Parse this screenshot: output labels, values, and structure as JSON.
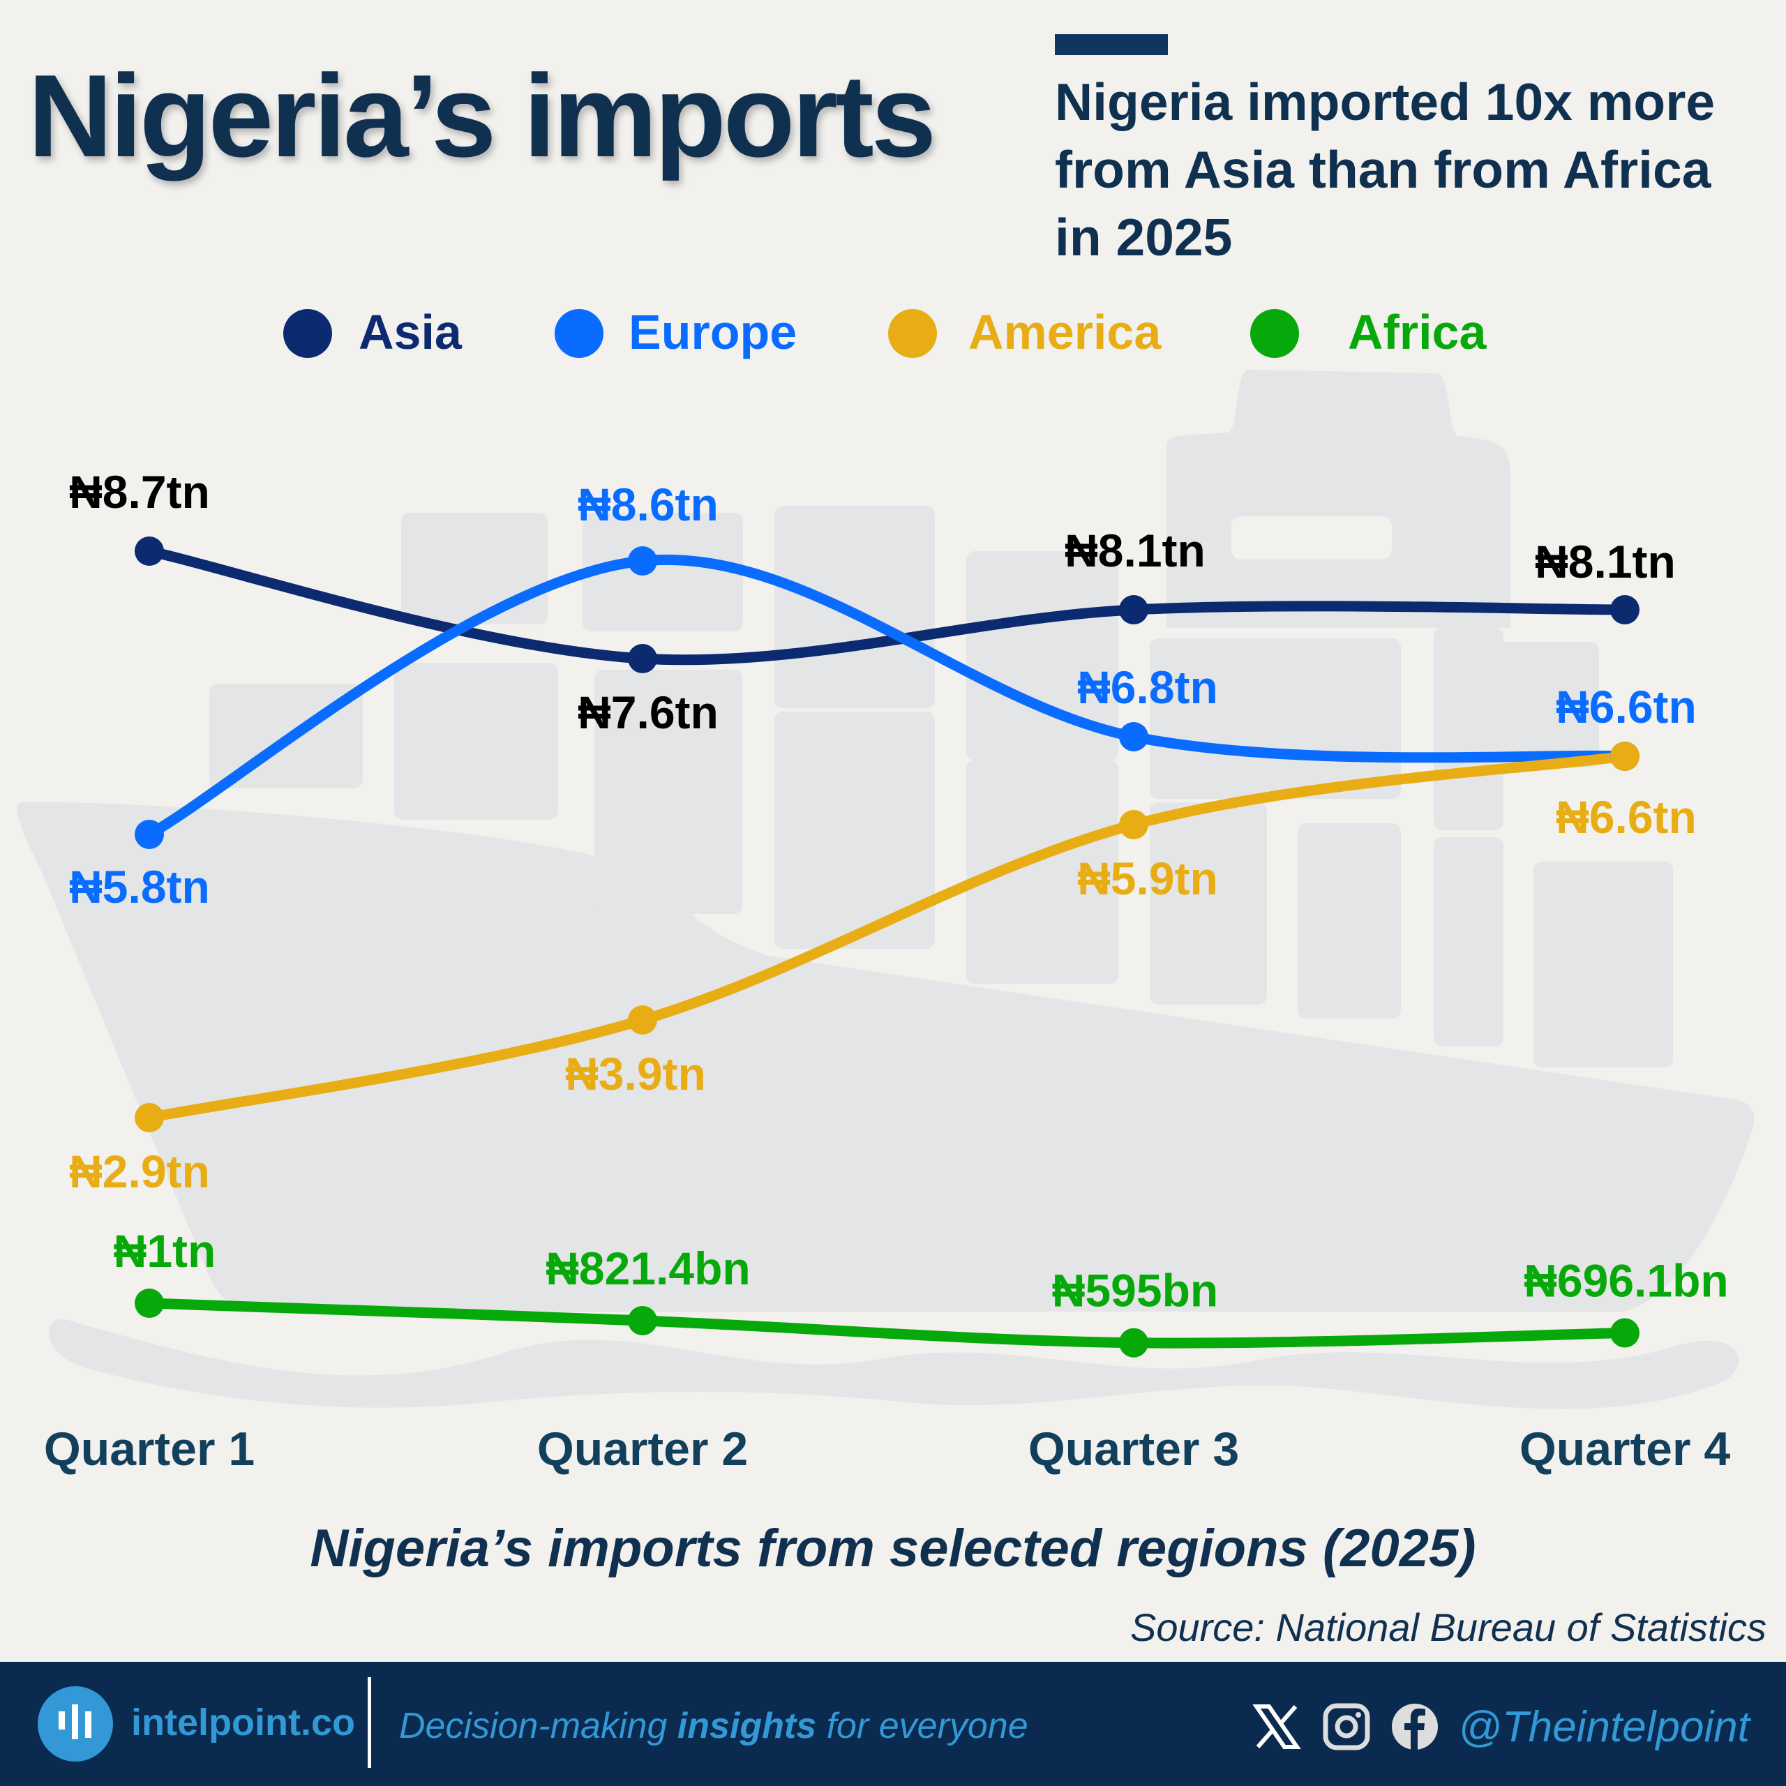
{
  "header": {
    "title": "Nigeria’s imports",
    "subtitle": "Nigeria imported 10x more from Asia than from Africa in 2025"
  },
  "chart_data": {
    "type": "line",
    "title": "Nigeria’s imports from selected regions (2025)",
    "categories": [
      "Quarter 1",
      "Quarter 2",
      "Quarter 3",
      "Quarter 4"
    ],
    "unit": "trillion naira",
    "legend_position": "top",
    "grid": false,
    "series": [
      {
        "name": "Asia",
        "color": "#0b2a6f",
        "label_color": "#000000",
        "values": [
          8.7,
          7.6,
          8.1,
          8.1
        ],
        "labels": [
          "₦8.7tn",
          "₦7.6tn",
          "₦8.1tn",
          "₦8.1tn"
        ]
      },
      {
        "name": "Europe",
        "color": "#0a6cff",
        "label_color": "#0a6cff",
        "values": [
          5.8,
          8.6,
          6.8,
          6.6
        ],
        "labels": [
          "₦5.8tn",
          "₦8.6tn",
          "₦6.8tn",
          "₦6.6tn"
        ]
      },
      {
        "name": "America",
        "color": "#e8ad14",
        "label_color": "#e8ad14",
        "values": [
          2.9,
          3.9,
          5.9,
          6.6
        ],
        "labels": [
          "₦2.9tn",
          "₦3.9tn",
          "₦5.9tn",
          "₦6.6tn"
        ]
      },
      {
        "name": "Africa",
        "color": "#07a80a",
        "label_color": "#07a80a",
        "values": [
          1.0,
          0.8214,
          0.595,
          0.6961
        ],
        "labels": [
          "₦1tn",
          "₦821.4bn",
          "₦595bn",
          "₦696.1bn"
        ]
      }
    ]
  },
  "source": "Source: National Bureau of Statistics",
  "footer": {
    "brand": "intelpoint.co",
    "tagline_pre": "Decision-making ",
    "tagline_bold": "insights",
    "tagline_post": " for everyone",
    "handle": "@Theintelpoint",
    "icons": [
      "x-icon",
      "instagram-icon",
      "facebook-icon"
    ]
  }
}
